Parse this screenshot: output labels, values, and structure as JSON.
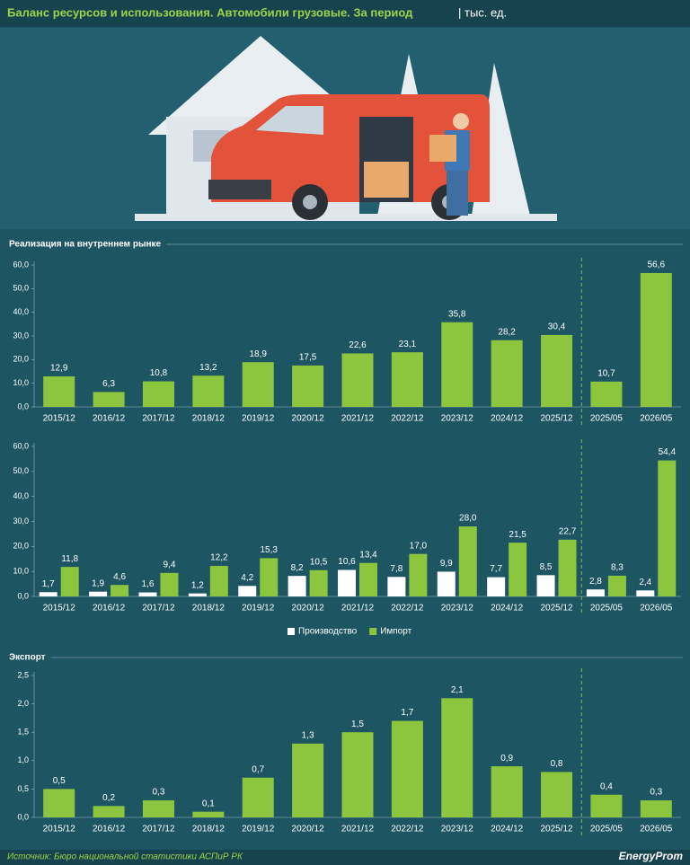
{
  "header": {
    "title": "Баланс ресурсов и использования. Автомобили грузовые. За период",
    "unit": "| тыс. ед."
  },
  "chart_data": [
    {
      "type": "bar",
      "title": "Реализация на внутреннем рынке",
      "categories": [
        "2015/12",
        "2016/12",
        "2017/12",
        "2018/12",
        "2019/12",
        "2020/12",
        "2021/12",
        "2022/12",
        "2023/12",
        "2024/12",
        "2025/12",
        "2025/05",
        "2026/05"
      ],
      "values": [
        12.9,
        6.3,
        10.8,
        13.2,
        18.9,
        17.5,
        22.6,
        23.1,
        35.8,
        28.2,
        30.4,
        10.7,
        56.6
      ],
      "value_labels": [
        "12,9",
        "6,3",
        "10,8",
        "13,2",
        "18,9",
        "17,5",
        "22,6",
        "23,1",
        "35,8",
        "28,2",
        "30,4",
        "10,7",
        "56,6"
      ],
      "color": "#8cc63f",
      "ylim": [
        0,
        60
      ],
      "yticks": [
        {
          "value": 0,
          "label": "0,0"
        },
        {
          "value": 10,
          "label": "10,0"
        },
        {
          "value": 20,
          "label": "20,0"
        },
        {
          "value": 30,
          "label": "30,0"
        },
        {
          "value": 40,
          "label": "40,0"
        },
        {
          "value": 50,
          "label": "50,0"
        },
        {
          "value": 60,
          "label": "60,0"
        }
      ]
    },
    {
      "type": "bar",
      "categories": [
        "2015/12",
        "2016/12",
        "2017/12",
        "2018/12",
        "2019/12",
        "2020/12",
        "2021/12",
        "2022/12",
        "2023/12",
        "2024/12",
        "2025/12",
        "2025/05",
        "2026/05"
      ],
      "series": [
        {
          "name": "Производство",
          "color": "#ffffff",
          "values": [
            1.7,
            1.9,
            1.6,
            1.2,
            4.2,
            8.2,
            10.6,
            7.8,
            9.9,
            7.7,
            8.5,
            2.8,
            2.4
          ],
          "value_labels": [
            "1,7",
            "1,9",
            "1,6",
            "1,2",
            "4,2",
            "8,2",
            "10,6",
            "7,8",
            "9,9",
            "7,7",
            "8,5",
            "2,8",
            "2,4"
          ]
        },
        {
          "name": "Импорт",
          "color": "#8cc63f",
          "values": [
            11.8,
            4.6,
            9.4,
            12.2,
            15.3,
            10.5,
            13.4,
            17.0,
            28.0,
            21.5,
            22.7,
            8.3,
            54.4
          ],
          "value_labels": [
            "11,8",
            "4,6",
            "9,4",
            "12,2",
            "15,3",
            "10,5",
            "13,4",
            "17,0",
            "28,0",
            "21,5",
            "22,7",
            "8,3",
            "54,4"
          ]
        }
      ],
      "ylim": [
        0,
        60
      ],
      "yticks": [
        {
          "value": 0,
          "label": "0,0"
        },
        {
          "value": 10,
          "label": "10,0"
        },
        {
          "value": 20,
          "label": "20,0"
        },
        {
          "value": 30,
          "label": "30,0"
        },
        {
          "value": 40,
          "label": "40,0"
        },
        {
          "value": 50,
          "label": "50,0"
        },
        {
          "value": 60,
          "label": "60,0"
        }
      ],
      "legend": "bottom"
    },
    {
      "type": "bar",
      "title": "Экспорт",
      "categories": [
        "2015/12",
        "2016/12",
        "2017/12",
        "2018/12",
        "2019/12",
        "2020/12",
        "2021/12",
        "2022/12",
        "2023/12",
        "2024/12",
        "2025/12",
        "2025/05",
        "2026/05"
      ],
      "values": [
        0.5,
        0.2,
        0.3,
        0.1,
        0.7,
        1.3,
        1.5,
        1.7,
        2.1,
        0.9,
        0.8,
        0.4,
        0.3
      ],
      "value_labels": [
        "0,5",
        "0,2",
        "0,3",
        "0,1",
        "0,7",
        "1,3",
        "1,5",
        "1,7",
        "2,1",
        "0,9",
        "0,8",
        "0,4",
        "0,3"
      ],
      "color": "#8cc63f",
      "ylim": [
        0,
        2.5
      ],
      "yticks": [
        {
          "value": 0,
          "label": "0,0"
        },
        {
          "value": 0.5,
          "label": "0,5"
        },
        {
          "value": 1,
          "label": "1,0"
        },
        {
          "value": 1.5,
          "label": "1,5"
        },
        {
          "value": 2,
          "label": "2,0"
        },
        {
          "value": 2.5,
          "label": "2,5"
        }
      ]
    }
  ],
  "footer": {
    "source": "Источник: Бюро национальной статистики АСПиР РК",
    "logo": "EnergyProm"
  }
}
